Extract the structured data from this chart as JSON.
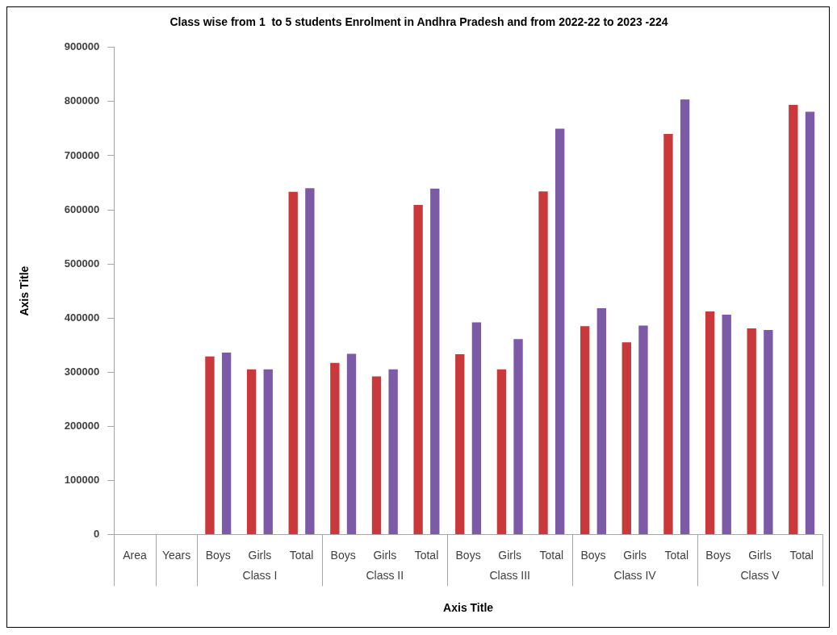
{
  "chart_data": {
    "type": "bar",
    "title": "Class wise from 1  to 5 students Enrolment in Andhra Pradesh and from 2022-22 to 2023 -224",
    "xlabel": "Axis Title",
    "ylabel": "Axis Title",
    "categories": [
      "Area",
      "Years",
      "Boys",
      "Girls",
      "Total",
      "Boys",
      "Girls",
      "Total",
      "Boys",
      "Girls",
      "Total",
      "Boys",
      "Girls",
      "Total",
      "Boys",
      "Girls",
      "Total"
    ],
    "annotations": [
      "Class I",
      "Class II",
      "Class III",
      "Class IV",
      "Class V"
    ],
    "series": [
      {
        "color": "#c9383b",
        "values": [
          null,
          null,
          329000,
          305000,
          633000,
          317000,
          292000,
          609000,
          333000,
          305000,
          634000,
          385000,
          355000,
          740000,
          412000,
          381000,
          794000
        ]
      },
      {
        "color": "#7d5aa8",
        "values": [
          null,
          null,
          336000,
          305000,
          640000,
          334000,
          305000,
          639000,
          392000,
          361000,
          750000,
          418000,
          386000,
          804000,
          406000,
          378000,
          781000
        ]
      }
    ],
    "ylim": [
      0,
      900000
    ],
    "yticks": [
      0,
      100000,
      200000,
      300000,
      400000,
      500000,
      600000,
      700000,
      800000,
      900000
    ],
    "grid": false,
    "legend": false
  }
}
